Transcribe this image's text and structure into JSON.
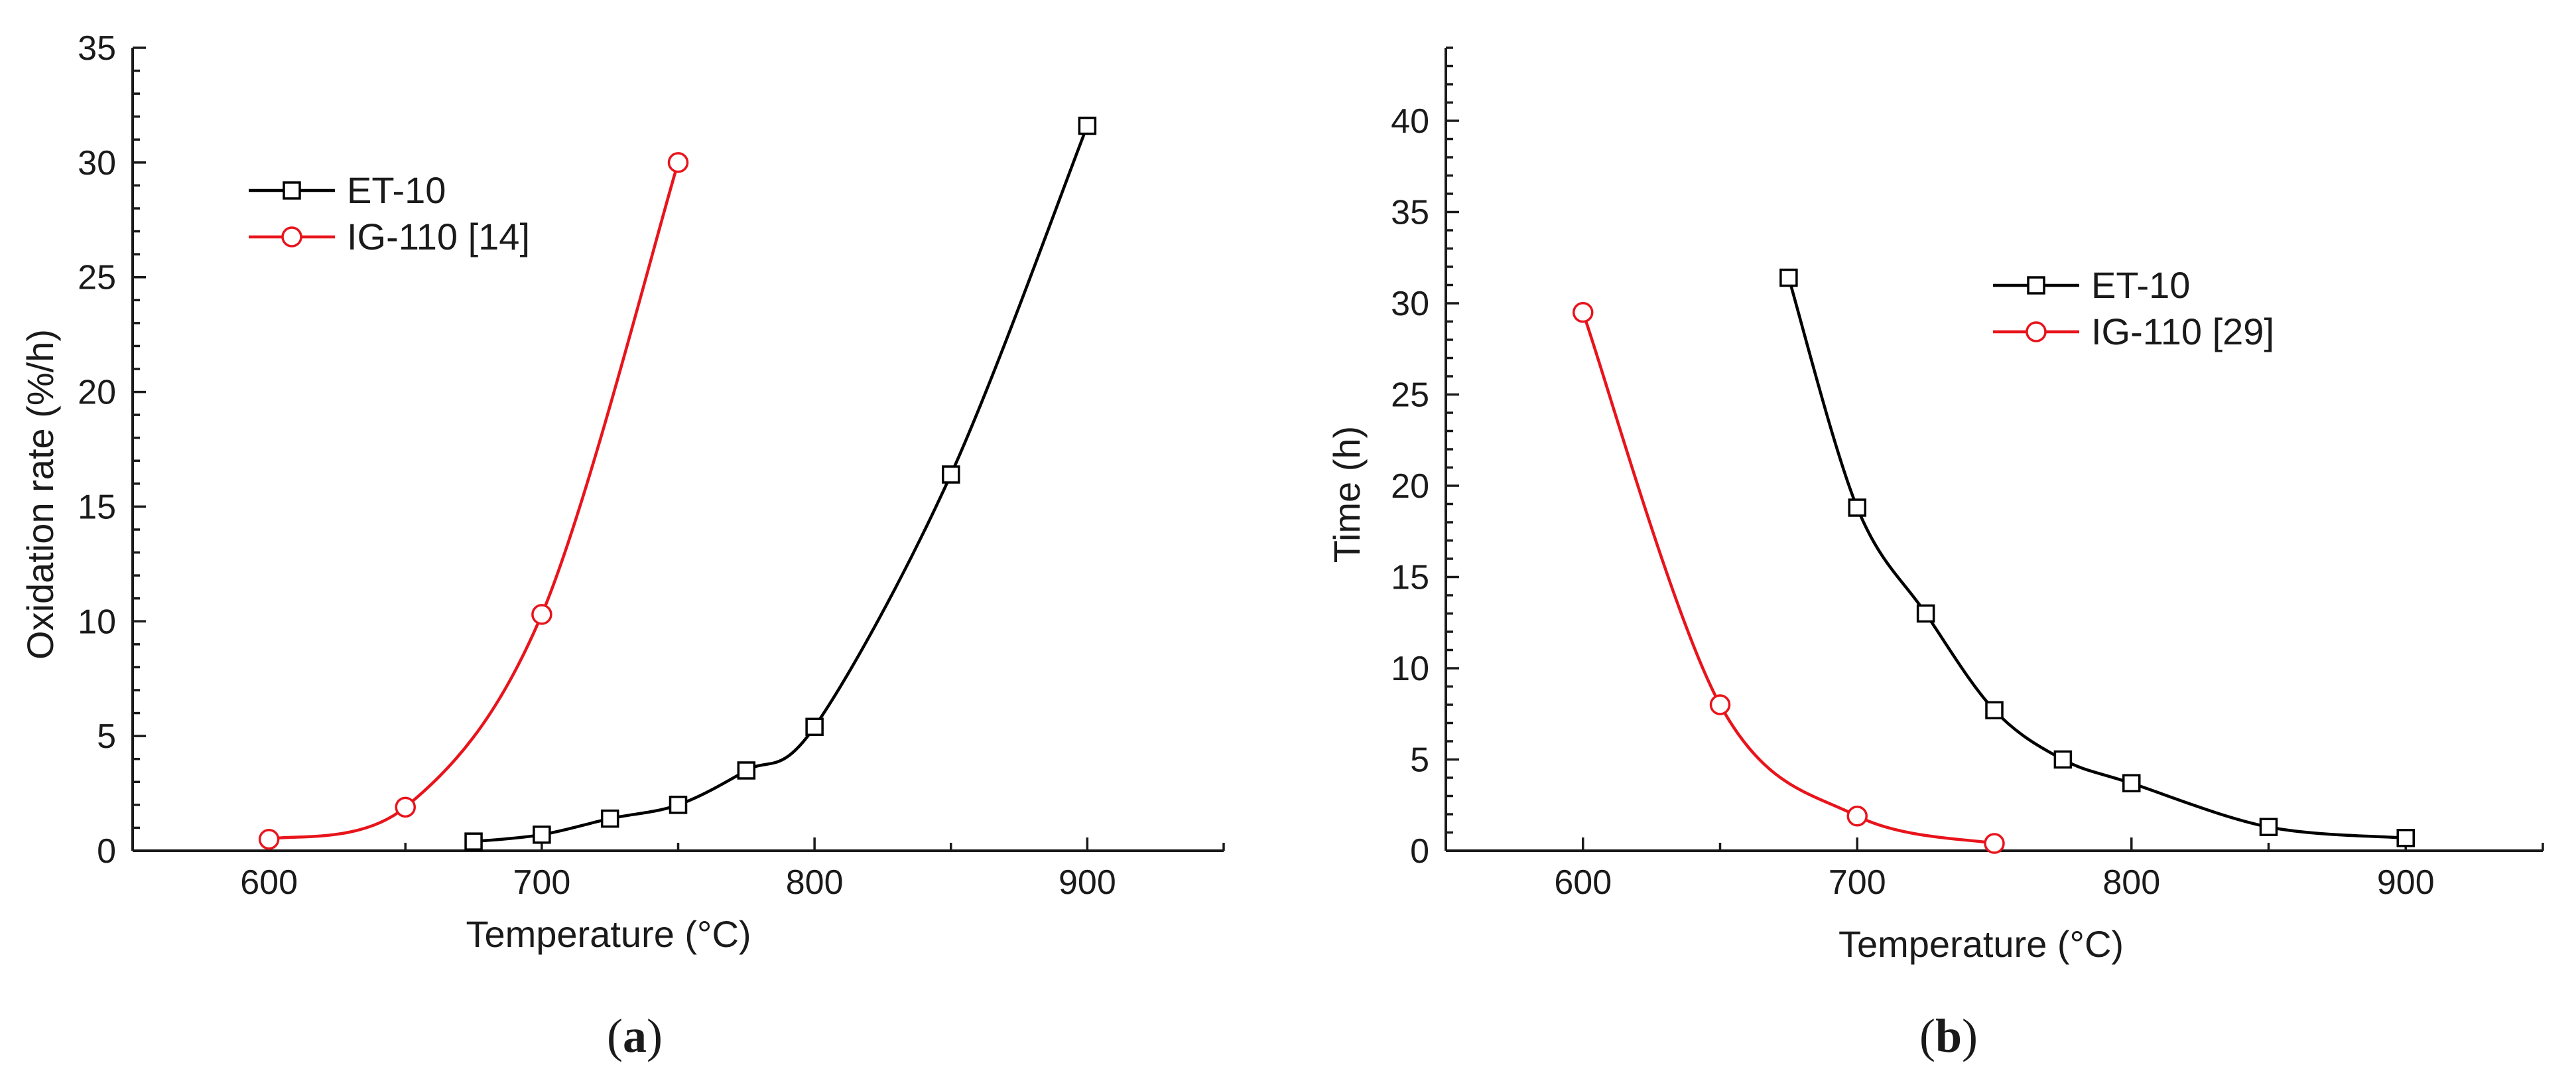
{
  "chart_data": [
    {
      "type": "line",
      "caption": "a",
      "xlabel": "Temperature (°C)",
      "ylabel": "Oxidation rate (%/h)",
      "xlim": [
        550,
        950
      ],
      "ylim": [
        0,
        35
      ],
      "x_ticks": [
        "600",
        "700",
        "800",
        "900"
      ],
      "y_ticks": [
        "0",
        "5",
        "10",
        "15",
        "20",
        "25",
        "30",
        "35"
      ],
      "legend_position": "upper-left",
      "grid": false,
      "series": [
        {
          "name": "ET-10",
          "color": "#000000",
          "marker": "open-square",
          "x": [
            675,
            700,
            725,
            750,
            775,
            800,
            850,
            900
          ],
          "y": [
            0.4,
            0.7,
            1.4,
            2.0,
            3.5,
            5.4,
            16.4,
            31.6
          ]
        },
        {
          "name": "IG-110 [14]",
          "color": "#e8141c",
          "marker": "open-circle",
          "x": [
            600,
            650,
            700,
            750
          ],
          "y": [
            0.5,
            1.9,
            10.3,
            30.0
          ]
        }
      ]
    },
    {
      "type": "line",
      "caption": "b",
      "xlabel": "Temperature (°C)",
      "ylabel": "Time (h)",
      "xlim": [
        550,
        950
      ],
      "ylim": [
        0,
        44
      ],
      "x_ticks": [
        "600",
        "700",
        "800",
        "900"
      ],
      "y_ticks": [
        "0",
        "5",
        "10",
        "15",
        "20",
        "25",
        "30",
        "35",
        "40"
      ],
      "legend_position": "upper-right",
      "grid": false,
      "series": [
        {
          "name": "ET-10",
          "color": "#000000",
          "marker": "open-square",
          "x": [
            675,
            700,
            725,
            750,
            775,
            800,
            850,
            900
          ],
          "y": [
            31.4,
            18.8,
            13.0,
            7.7,
            5.0,
            3.7,
            1.3,
            0.7
          ]
        },
        {
          "name": "IG-110 [29]",
          "color": "#e8141c",
          "marker": "open-circle",
          "x": [
            600,
            650,
            700,
            750
          ],
          "y": [
            29.5,
            8.0,
            1.9,
            0.4
          ]
        }
      ]
    }
  ],
  "captions": [
    "(a)",
    "(b)"
  ]
}
